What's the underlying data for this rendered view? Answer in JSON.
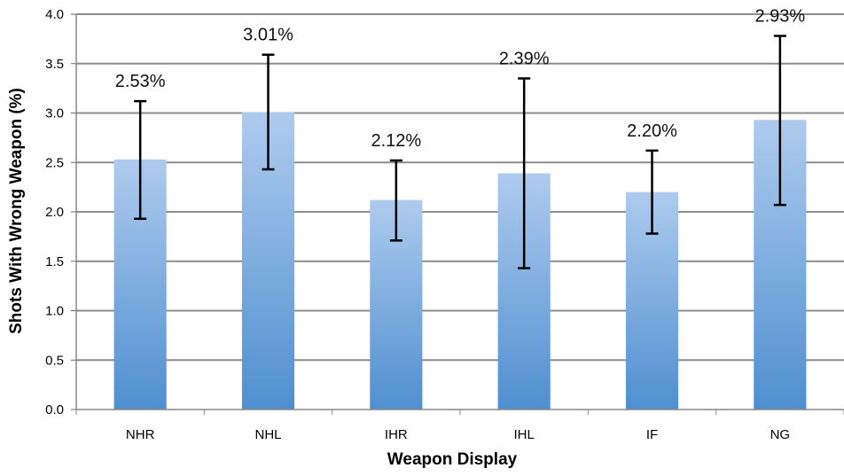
{
  "chart_data": {
    "type": "bar",
    "xlabel": "Weapon Display",
    "ylabel": "Shots With Wrong Weapon (%)",
    "categories": [
      "NHR",
      "NHL",
      "IHR",
      "IHL",
      "IF",
      "NG"
    ],
    "values": [
      2.53,
      3.01,
      2.12,
      2.39,
      2.2,
      2.93
    ],
    "error_low": [
      1.93,
      2.43,
      1.71,
      1.43,
      1.78,
      2.07
    ],
    "error_high": [
      3.12,
      3.59,
      2.52,
      3.35,
      2.62,
      3.78
    ],
    "data_labels": [
      "2.53%",
      "3.01%",
      "2.12%",
      "2.39%",
      "2.20%",
      "2.93%"
    ],
    "ylim": [
      0,
      4
    ],
    "yticks": [
      "0.0",
      "0.5",
      "1.0",
      "1.5",
      "2.0",
      "2.5",
      "3.0",
      "3.5",
      "4.0"
    ],
    "grid": true,
    "bar_color_top": "#aecbee",
    "bar_color_bottom": "#4f8fd0",
    "gridline_color": "#8c8c8c",
    "error_bar_color": "#000000"
  }
}
